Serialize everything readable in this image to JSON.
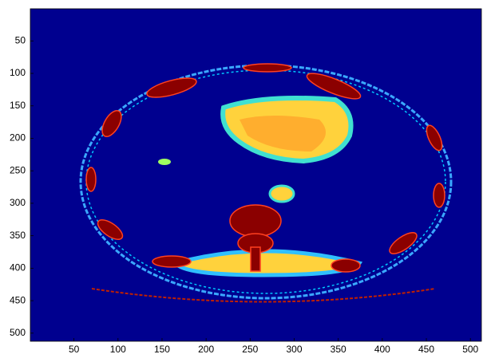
{
  "chart_data": {
    "type": "image",
    "xlim": [
      0.5,
      512.5
    ],
    "ylim": [
      0.5,
      512.5
    ],
    "xticks": [
      50,
      100,
      150,
      200,
      250,
      300,
      350,
      400,
      450,
      500
    ],
    "yticks": [
      50,
      100,
      150,
      200,
      250,
      300,
      350,
      400,
      450,
      500
    ],
    "y_reversed": true,
    "colormap": "jet",
    "background": "#00008f"
  }
}
